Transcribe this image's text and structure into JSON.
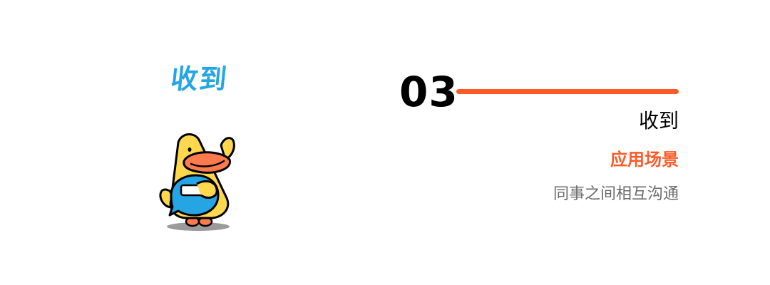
{
  "sticker": {
    "caption": "收到",
    "icon": "duck-icon",
    "caption_color": "#26a5e4"
  },
  "section": {
    "number": "03",
    "title": "收到",
    "subtitle": "应用场景",
    "description": "同事之间相互沟通"
  },
  "colors": {
    "accent": "#ff5a26",
    "number": "#000000",
    "description": "#6b6b6b"
  }
}
